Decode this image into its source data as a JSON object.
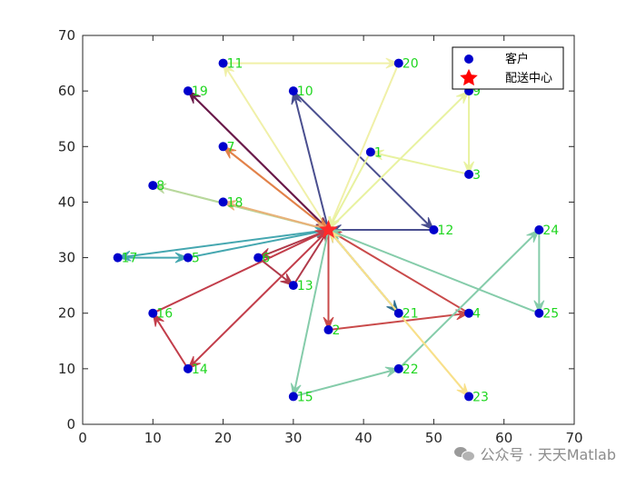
{
  "chart_data": {
    "type": "scatter",
    "xlim": [
      0,
      70
    ],
    "ylim": [
      0,
      70
    ],
    "xticks": [
      0,
      10,
      20,
      30,
      40,
      50,
      60,
      70
    ],
    "yticks": [
      0,
      10,
      20,
      30,
      40,
      50,
      60,
      70
    ],
    "grid": false,
    "legend_placement": "top-right",
    "legend": [
      {
        "label": "客户",
        "marker": "circle",
        "color": "#0000cc"
      },
      {
        "label": "配送中心",
        "marker": "star",
        "color": "#ff0000"
      }
    ],
    "depot": {
      "x": 35,
      "y": 35
    },
    "customers": [
      {
        "id": "1",
        "x": 41,
        "y": 49
      },
      {
        "id": "2",
        "x": 35,
        "y": 17
      },
      {
        "id": "3",
        "x": 55,
        "y": 45
      },
      {
        "id": "4",
        "x": 55,
        "y": 20
      },
      {
        "id": "5",
        "x": 15,
        "y": 30
      },
      {
        "id": "6",
        "x": 25,
        "y": 30
      },
      {
        "id": "7",
        "x": 20,
        "y": 50
      },
      {
        "id": "8",
        "x": 10,
        "y": 43
      },
      {
        "id": "9",
        "x": 55,
        "y": 60
      },
      {
        "id": "10",
        "x": 30,
        "y": 60
      },
      {
        "id": "11",
        "x": 20,
        "y": 65
      },
      {
        "id": "12",
        "x": 50,
        "y": 35
      },
      {
        "id": "13",
        "x": 30,
        "y": 25
      },
      {
        "id": "14",
        "x": 15,
        "y": 10
      },
      {
        "id": "15",
        "x": 30,
        "y": 5
      },
      {
        "id": "16",
        "x": 10,
        "y": 20
      },
      {
        "id": "17",
        "x": 5,
        "y": 30
      },
      {
        "id": "18",
        "x": 20,
        "y": 40
      },
      {
        "id": "19",
        "x": 15,
        "y": 60
      },
      {
        "id": "20",
        "x": 45,
        "y": 65
      },
      {
        "id": "21",
        "x": 45,
        "y": 20
      },
      {
        "id": "22",
        "x": 45,
        "y": 10
      },
      {
        "id": "23",
        "x": 55,
        "y": 5
      },
      {
        "id": "24",
        "x": 65,
        "y": 35
      },
      {
        "id": "25",
        "x": 65,
        "y": 20
      }
    ],
    "routes": [
      {
        "color": "#6a1a4a",
        "nodes": [
          "0",
          "19",
          "0"
        ]
      },
      {
        "color": "#4a4f8f",
        "nodes": [
          "0",
          "10",
          "12",
          "0"
        ]
      },
      {
        "color": "#f0f0a8",
        "nodes": [
          "0",
          "11",
          "20",
          "0"
        ]
      },
      {
        "color": "#e8f2a0",
        "nodes": [
          "0",
          "9",
          "3",
          "1",
          "0"
        ]
      },
      {
        "color": "#e2824a",
        "nodes": [
          "0",
          "7",
          "0"
        ]
      },
      {
        "color": "#b8d89c",
        "nodes": [
          "0",
          "8",
          "0"
        ]
      },
      {
        "color": "#e8b27a",
        "nodes": [
          "0",
          "18",
          "0"
        ]
      },
      {
        "color": "#45a7b0",
        "nodes": [
          "0",
          "17",
          "5",
          "0"
        ]
      },
      {
        "color": "#b03a4a",
        "nodes": [
          "0",
          "6",
          "13",
          "0"
        ]
      },
      {
        "color": "#c23d4a",
        "nodes": [
          "0",
          "14",
          "16",
          "0"
        ]
      },
      {
        "color": "#c94a4a",
        "nodes": [
          "0",
          "2",
          "4",
          "0"
        ]
      },
      {
        "color": "#2f6f8f",
        "nodes": [
          "0",
          "21",
          "0"
        ]
      },
      {
        "color": "#85ccaa",
        "nodes": [
          "0",
          "15",
          "22",
          "24",
          "25",
          "0"
        ]
      },
      {
        "color": "#f8e08a",
        "nodes": [
          "0",
          "23",
          "0"
        ]
      }
    ]
  },
  "watermark": {
    "text": "公众号 · 天天Matlab"
  }
}
